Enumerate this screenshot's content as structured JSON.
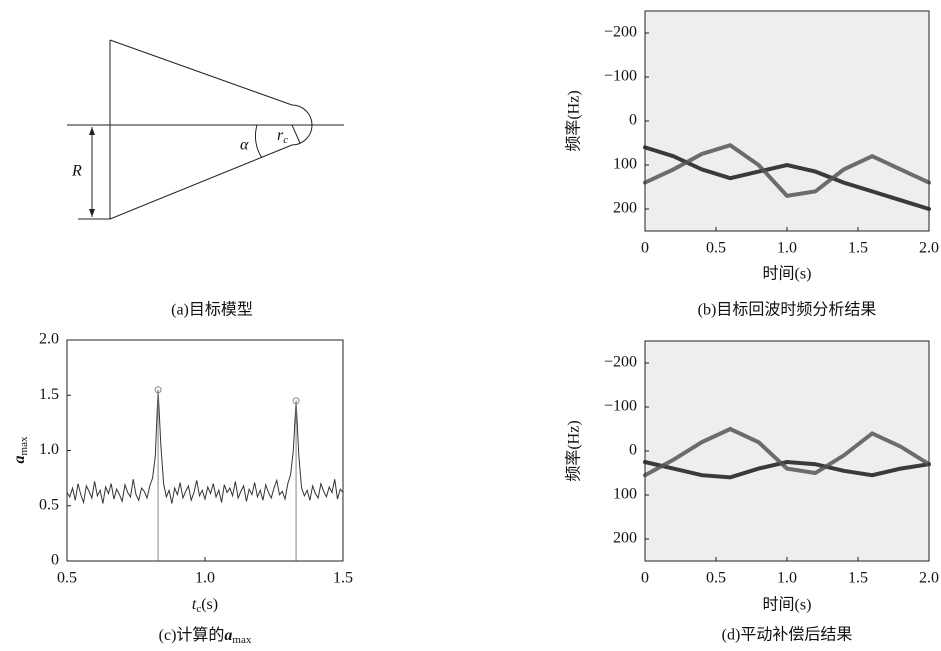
{
  "diagram": {
    "labels": {
      "alpha": "α",
      "r": "r",
      "r_sub": "c",
      "R": "R"
    },
    "caption": "(a)目标模型"
  },
  "chart_data": [
    {
      "type": "spectrogram",
      "caption": "(b)目标回波时频分析结果",
      "xlabel": "时间(s)",
      "ylabel": "频率(Hz)",
      "xlim": [
        0,
        2
      ],
      "xticks": [
        0,
        0.5,
        {
          "value": 1,
          "label": "1.0"
        },
        1.5,
        {
          "value": 2,
          "label": "2.0"
        }
      ],
      "ylim": [
        -250,
        250
      ],
      "y_inverted": true,
      "yticks": [
        {
          "value": -200,
          "label": "−200"
        },
        {
          "value": -100,
          "label": "−100"
        },
        0,
        100,
        200
      ],
      "background": "#eeeeee",
      "series": [
        {
          "color": "#1a1a1a",
          "x": [
            0,
            0.2,
            0.4,
            0.6,
            0.8,
            1.0,
            1.2,
            1.4,
            1.6,
            1.8,
            2.0
          ],
          "values": [
            60,
            80,
            110,
            130,
            115,
            100,
            115,
            140,
            160,
            180,
            200
          ]
        },
        {
          "color": "#555555",
          "x": [
            0,
            0.2,
            0.4,
            0.6,
            0.8,
            1.0,
            1.2,
            1.4,
            1.6,
            1.8,
            2.0
          ],
          "values": [
            140,
            110,
            75,
            55,
            100,
            170,
            160,
            110,
            80,
            110,
            140
          ]
        }
      ]
    },
    {
      "type": "line",
      "caption": {
        "text": "(c)计算的",
        "symbol": "a",
        "sub": "max"
      },
      "xlabel": {
        "text": "t",
        "sub": "c",
        "rest": "(s)"
      },
      "ylabel": {
        "text": "a",
        "sub": "max"
      },
      "xlim": [
        0.5,
        1.5
      ],
      "xticks": [
        0.5,
        {
          "value": 1,
          "label": "1.0"
        },
        1.5
      ],
      "ylim": [
        0,
        2
      ],
      "yticks": [
        0,
        0.5,
        {
          "value": 1,
          "label": "1.0"
        },
        1.5,
        {
          "value": 2,
          "label": "2.0"
        }
      ],
      "color": "#333333",
      "peak_color": "#888888",
      "peaks": [
        33,
        83
      ],
      "x": [
        0.5,
        0.51,
        0.52,
        0.53,
        0.54,
        0.55,
        0.56,
        0.57,
        0.58,
        0.59,
        0.6,
        0.61,
        0.62,
        0.63,
        0.64,
        0.65,
        0.66,
        0.67,
        0.68,
        0.69,
        0.7,
        0.71,
        0.72,
        0.73,
        0.74,
        0.75,
        0.76,
        0.77,
        0.78,
        0.79,
        0.8,
        0.81,
        0.82,
        0.83,
        0.84,
        0.85,
        0.86,
        0.87,
        0.88,
        0.89,
        0.9,
        0.91,
        0.92,
        0.93,
        0.94,
        0.95,
        0.96,
        0.97,
        0.98,
        0.99,
        1.0,
        1.01,
        1.02,
        1.03,
        1.04,
        1.05,
        1.06,
        1.07,
        1.08,
        1.09,
        1.1,
        1.11,
        1.12,
        1.13,
        1.14,
        1.15,
        1.16,
        1.17,
        1.18,
        1.19,
        1.2,
        1.21,
        1.22,
        1.23,
        1.24,
        1.25,
        1.26,
        1.27,
        1.28,
        1.29,
        1.3,
        1.31,
        1.32,
        1.33,
        1.34,
        1.35,
        1.36,
        1.37,
        1.38,
        1.39,
        1.4,
        1.41,
        1.42,
        1.43,
        1.44,
        1.45,
        1.46,
        1.47,
        1.48,
        1.49,
        1.5
      ],
      "values": [
        0.62,
        0.58,
        0.66,
        0.55,
        0.7,
        0.6,
        0.53,
        0.68,
        0.63,
        0.57,
        0.72,
        0.59,
        0.64,
        0.52,
        0.67,
        0.61,
        0.7,
        0.56,
        0.65,
        0.6,
        0.54,
        0.69,
        0.62,
        0.58,
        0.74,
        0.6,
        0.55,
        0.66,
        0.63,
        0.57,
        0.68,
        0.75,
        0.95,
        1.55,
        1.05,
        0.7,
        0.58,
        0.64,
        0.52,
        0.66,
        0.6,
        0.71,
        0.57,
        0.63,
        0.68,
        0.55,
        0.62,
        0.73,
        0.59,
        0.64,
        0.56,
        0.67,
        0.61,
        0.7,
        0.58,
        0.64,
        0.53,
        0.69,
        0.62,
        0.66,
        0.59,
        0.72,
        0.57,
        0.63,
        0.68,
        0.54,
        0.65,
        0.6,
        0.71,
        0.58,
        0.64,
        0.55,
        0.69,
        0.62,
        0.57,
        0.66,
        0.73,
        0.6,
        0.63,
        0.56,
        0.7,
        0.78,
        1.0,
        1.45,
        0.95,
        0.66,
        0.59,
        0.64,
        0.55,
        0.68,
        0.61,
        0.57,
        0.7,
        0.63,
        0.58,
        0.67,
        0.62,
        0.74,
        0.56,
        0.65,
        0.62
      ]
    },
    {
      "type": "spectrogram",
      "caption": "(d)平动补偿后结果",
      "xlabel": "时间(s)",
      "ylabel": "频率(Hz)",
      "xlim": [
        0,
        2
      ],
      "xticks": [
        0,
        0.5,
        {
          "value": 1,
          "label": "1.0"
        },
        1.5,
        {
          "value": 2,
          "label": "2.0"
        }
      ],
      "ylim": [
        -250,
        250
      ],
      "y_inverted": true,
      "yticks": [
        {
          "value": -200,
          "label": "−200"
        },
        {
          "value": -100,
          "label": "−100"
        },
        0,
        100,
        200
      ],
      "background": "#eeeeee",
      "series": [
        {
          "color": "#1a1a1a",
          "x": [
            0,
            0.2,
            0.4,
            0.6,
            0.8,
            1.0,
            1.2,
            1.4,
            1.6,
            1.8,
            2.0
          ],
          "values": [
            25,
            40,
            55,
            60,
            40,
            25,
            30,
            45,
            55,
            40,
            30
          ]
        },
        {
          "color": "#555555",
          "x": [
            0,
            0.2,
            0.4,
            0.6,
            0.8,
            1.0,
            1.2,
            1.4,
            1.6,
            1.8,
            2.0
          ],
          "values": [
            55,
            20,
            -20,
            -50,
            -20,
            40,
            50,
            10,
            -40,
            -10,
            30
          ]
        }
      ]
    }
  ]
}
